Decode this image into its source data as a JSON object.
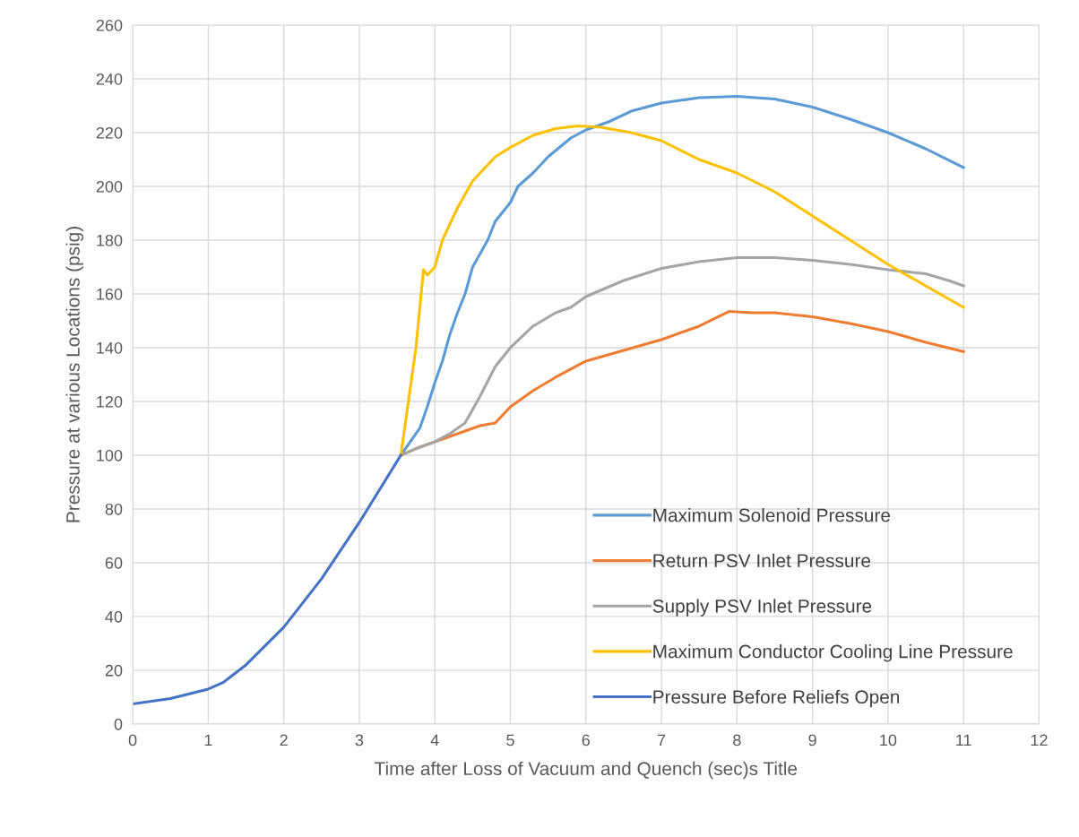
{
  "chart_data": {
    "type": "line",
    "xlabel": "Time after Loss of Vacuum and Quench (sec)s Title",
    "ylabel": "Pressure at various Locations (psig)",
    "xlim": [
      0,
      12
    ],
    "xticks": [
      0,
      1,
      2,
      3,
      4,
      5,
      6,
      7,
      8,
      9,
      10,
      11,
      12
    ],
    "ylim": [
      0,
      260
    ],
    "yticks": [
      0,
      20,
      40,
      60,
      80,
      100,
      120,
      140,
      160,
      180,
      200,
      220,
      240,
      260
    ],
    "grid": true,
    "legend": "bottom right",
    "marker": "none",
    "line_style": "solid",
    "series": [
      {
        "name": "Maximum Solenoid Pressure",
        "color": "#5b9bd5",
        "x": [
          3.55,
          3.8,
          3.9,
          4,
          4.1,
          4.2,
          4.3,
          4.4,
          4.5,
          4.7,
          4.8,
          5,
          5.1,
          5.3,
          5.5,
          5.8,
          6,
          6.3,
          6.6,
          7,
          7.5,
          8,
          8.5,
          9,
          9.5,
          10,
          10.5,
          11
        ],
        "values": [
          100,
          110,
          118,
          127,
          135,
          145,
          153,
          160,
          170,
          180,
          187,
          194,
          200,
          205,
          211,
          218,
          221,
          224,
          228,
          231,
          233,
          233.5,
          232.5,
          229.5,
          225,
          220,
          214,
          207
        ]
      },
      {
        "name": "Return PSV Inlet Pressure",
        "color": "#ed7d31",
        "x": [
          3.55,
          3.8,
          4,
          4.2,
          4.4,
          4.6,
          4.8,
          5,
          5.3,
          5.6,
          6,
          6.5,
          7,
          7.5,
          7.9,
          8.2,
          8.5,
          9,
          9.5,
          10,
          10.5,
          11
        ],
        "values": [
          100,
          103,
          105,
          107,
          109,
          111,
          112,
          118,
          124,
          129,
          135,
          139,
          143,
          148,
          153.5,
          153,
          153,
          151.5,
          149,
          146,
          142,
          138.5
        ]
      },
      {
        "name": "Supply PSV Inlet Pressure",
        "color": "#a5a5a5",
        "x": [
          3.55,
          3.8,
          4,
          4.2,
          4.4,
          4.6,
          4.8,
          5,
          5.3,
          5.6,
          5.8,
          6,
          6.5,
          7,
          7.5,
          8,
          8.5,
          9,
          9.5,
          10,
          10.5,
          10.8,
          11
        ],
        "values": [
          100,
          103,
          105,
          108,
          112,
          122,
          133,
          140,
          148,
          153,
          155,
          159,
          165,
          169.5,
          172,
          173.5,
          173.5,
          172.5,
          171,
          169,
          167.5,
          165,
          163
        ]
      },
      {
        "name": "Maximum Conductor Cooling Line Pressure",
        "color": "#ffc000",
        "x": [
          3.55,
          3.75,
          3.85,
          3.9,
          4,
          4.1,
          4.3,
          4.5,
          4.8,
          5,
          5.3,
          5.6,
          5.9,
          6.2,
          6.6,
          7,
          7.5,
          8,
          8.5,
          9,
          9.5,
          10,
          10.5,
          11
        ],
        "values": [
          100,
          140,
          169,
          167,
          170,
          180,
          192,
          202,
          211,
          214.5,
          219,
          221.5,
          222.5,
          222,
          220,
          217,
          210,
          205,
          198,
          189,
          180,
          171,
          163,
          155
        ]
      },
      {
        "name": "Pressure Before Reliefs Open",
        "color": "#4472c4",
        "x": [
          0,
          0.5,
          1,
          1.2,
          1.5,
          2,
          2.5,
          3,
          3.55
        ],
        "values": [
          7.5,
          9.5,
          13,
          15.5,
          22,
          36,
          54,
          75,
          100
        ]
      }
    ]
  }
}
